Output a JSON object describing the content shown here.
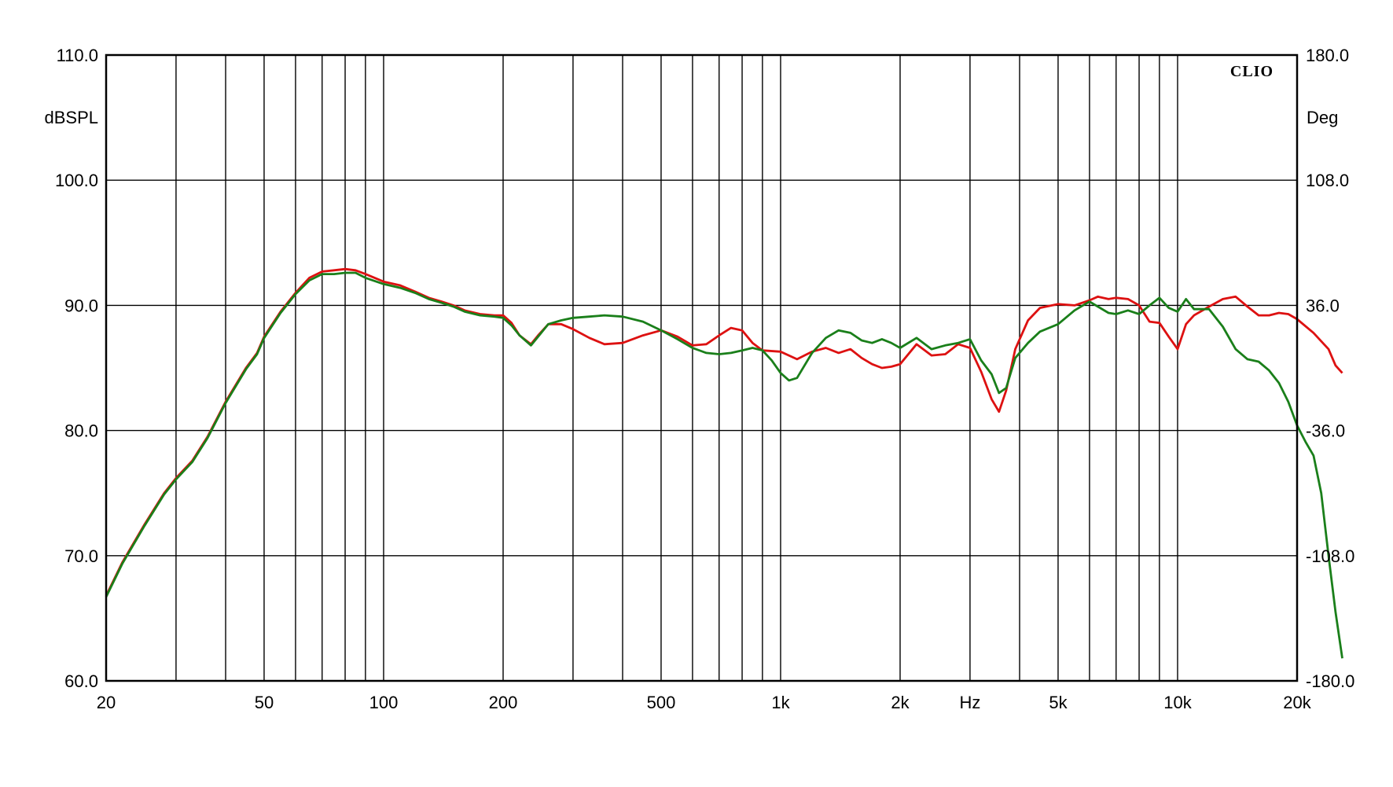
{
  "chart_data": {
    "type": "line",
    "brand": "CLIO",
    "xlabel": "Hz",
    "ylabel_left": "dBSPL",
    "ylabel_right": "Deg",
    "x_scale": "log",
    "xlim": [
      20,
      20000
    ],
    "ylim_left": [
      60,
      110
    ],
    "ylim_right": [
      -180,
      180
    ],
    "grid": true,
    "x_ticks": [
      {
        "value": 20,
        "label": "20"
      },
      {
        "value": 50,
        "label": "50"
      },
      {
        "value": 100,
        "label": "100"
      },
      {
        "value": 200,
        "label": "200"
      },
      {
        "value": 500,
        "label": "500"
      },
      {
        "value": 1000,
        "label": "1k"
      },
      {
        "value": 2000,
        "label": "2k"
      },
      {
        "value": 5000,
        "label": "5k"
      },
      {
        "value": 10000,
        "label": "10k"
      },
      {
        "value": 20000,
        "label": "20k"
      }
    ],
    "y_ticks_left": [
      {
        "value": 60,
        "label": "60.0"
      },
      {
        "value": 70,
        "label": "70.0"
      },
      {
        "value": 80,
        "label": "80.0"
      },
      {
        "value": 90,
        "label": "90.0"
      },
      {
        "value": 100,
        "label": "100.0"
      },
      {
        "value": 110,
        "label": "110.0"
      }
    ],
    "y_ticks_right": [
      {
        "value": -180,
        "label": "-180.0"
      },
      {
        "value": -108,
        "label": "-108.0"
      },
      {
        "value": -36,
        "label": "-36.0"
      },
      {
        "value": 36,
        "label": "36.0"
      },
      {
        "value": 108,
        "label": "108.0"
      },
      {
        "value": 180,
        "label": "180.0"
      }
    ],
    "series": [
      {
        "color": "#dd1111",
        "points": [
          [
            20,
            66.8
          ],
          [
            22,
            69.5
          ],
          [
            25,
            72.5
          ],
          [
            28,
            75.0
          ],
          [
            30,
            76.2
          ],
          [
            33,
            77.6
          ],
          [
            36,
            79.5
          ],
          [
            40,
            82.3
          ],
          [
            45,
            85.0
          ],
          [
            48,
            86.2
          ],
          [
            50,
            87.5
          ],
          [
            55,
            89.5
          ],
          [
            60,
            91.0
          ],
          [
            65,
            92.2
          ],
          [
            70,
            92.7
          ],
          [
            75,
            92.8
          ],
          [
            80,
            92.9
          ],
          [
            85,
            92.8
          ],
          [
            90,
            92.5
          ],
          [
            100,
            91.9
          ],
          [
            110,
            91.6
          ],
          [
            120,
            91.1
          ],
          [
            130,
            90.6
          ],
          [
            140,
            90.3
          ],
          [
            150,
            90.0
          ],
          [
            160,
            89.6
          ],
          [
            175,
            89.3
          ],
          [
            190,
            89.2
          ],
          [
            200,
            89.2
          ],
          [
            210,
            88.6
          ],
          [
            220,
            87.6
          ],
          [
            235,
            86.9
          ],
          [
            245,
            87.6
          ],
          [
            260,
            88.5
          ],
          [
            280,
            88.5
          ],
          [
            300,
            88.1
          ],
          [
            330,
            87.4
          ],
          [
            360,
            86.9
          ],
          [
            400,
            87.0
          ],
          [
            450,
            87.6
          ],
          [
            500,
            88.0
          ],
          [
            550,
            87.5
          ],
          [
            600,
            86.8
          ],
          [
            650,
            86.9
          ],
          [
            700,
            87.6
          ],
          [
            750,
            88.2
          ],
          [
            800,
            88.0
          ],
          [
            850,
            87.0
          ],
          [
            900,
            86.4
          ],
          [
            1000,
            86.3
          ],
          [
            1100,
            85.7
          ],
          [
            1200,
            86.3
          ],
          [
            1300,
            86.6
          ],
          [
            1400,
            86.2
          ],
          [
            1500,
            86.5
          ],
          [
            1600,
            85.8
          ],
          [
            1700,
            85.3
          ],
          [
            1800,
            85.0
          ],
          [
            1900,
            85.1
          ],
          [
            2000,
            85.3
          ],
          [
            2200,
            86.9
          ],
          [
            2400,
            86.0
          ],
          [
            2600,
            86.1
          ],
          [
            2800,
            86.9
          ],
          [
            3000,
            86.6
          ],
          [
            3200,
            84.7
          ],
          [
            3400,
            82.5
          ],
          [
            3550,
            81.5
          ],
          [
            3700,
            83.2
          ],
          [
            3900,
            86.5
          ],
          [
            4200,
            88.8
          ],
          [
            4500,
            89.8
          ],
          [
            5000,
            90.1
          ],
          [
            5500,
            90.0
          ],
          [
            6000,
            90.4
          ],
          [
            6300,
            90.7
          ],
          [
            6700,
            90.5
          ],
          [
            7000,
            90.6
          ],
          [
            7500,
            90.5
          ],
          [
            8000,
            90.0
          ],
          [
            8500,
            88.7
          ],
          [
            9000,
            88.6
          ],
          [
            9500,
            87.5
          ],
          [
            10000,
            86.5
          ],
          [
            10500,
            88.5
          ],
          [
            11000,
            89.2
          ],
          [
            12000,
            89.9
          ],
          [
            13000,
            90.5
          ],
          [
            14000,
            90.7
          ],
          [
            15000,
            89.9
          ],
          [
            16000,
            89.2
          ],
          [
            17000,
            89.2
          ],
          [
            18000,
            89.4
          ],
          [
            19000,
            89.3
          ],
          [
            20000,
            88.9
          ],
          [
            22000,
            87.8
          ],
          [
            24000,
            86.5
          ],
          [
            25000,
            85.2
          ],
          [
            26000,
            84.6
          ]
        ]
      },
      {
        "color": "#1a7f1a",
        "points": [
          [
            20,
            66.7
          ],
          [
            22,
            69.4
          ],
          [
            25,
            72.4
          ],
          [
            28,
            74.9
          ],
          [
            30,
            76.1
          ],
          [
            33,
            77.5
          ],
          [
            36,
            79.4
          ],
          [
            40,
            82.2
          ],
          [
            45,
            84.9
          ],
          [
            48,
            86.1
          ],
          [
            50,
            87.4
          ],
          [
            55,
            89.4
          ],
          [
            60,
            90.9
          ],
          [
            65,
            92.0
          ],
          [
            70,
            92.5
          ],
          [
            75,
            92.5
          ],
          [
            80,
            92.6
          ],
          [
            85,
            92.6
          ],
          [
            90,
            92.2
          ],
          [
            100,
            91.7
          ],
          [
            110,
            91.4
          ],
          [
            120,
            91.0
          ],
          [
            130,
            90.5
          ],
          [
            140,
            90.2
          ],
          [
            150,
            89.9
          ],
          [
            160,
            89.5
          ],
          [
            175,
            89.2
          ],
          [
            190,
            89.1
          ],
          [
            200,
            89.0
          ],
          [
            210,
            88.4
          ],
          [
            220,
            87.6
          ],
          [
            235,
            86.8
          ],
          [
            245,
            87.5
          ],
          [
            260,
            88.5
          ],
          [
            280,
            88.8
          ],
          [
            300,
            89.0
          ],
          [
            330,
            89.1
          ],
          [
            360,
            89.2
          ],
          [
            400,
            89.1
          ],
          [
            450,
            88.7
          ],
          [
            500,
            88.0
          ],
          [
            550,
            87.3
          ],
          [
            600,
            86.6
          ],
          [
            650,
            86.2
          ],
          [
            700,
            86.1
          ],
          [
            750,
            86.2
          ],
          [
            800,
            86.4
          ],
          [
            850,
            86.6
          ],
          [
            900,
            86.4
          ],
          [
            950,
            85.6
          ],
          [
            1000,
            84.6
          ],
          [
            1050,
            84.0
          ],
          [
            1100,
            84.2
          ],
          [
            1200,
            86.2
          ],
          [
            1300,
            87.4
          ],
          [
            1400,
            88.0
          ],
          [
            1500,
            87.8
          ],
          [
            1600,
            87.2
          ],
          [
            1700,
            87.0
          ],
          [
            1800,
            87.3
          ],
          [
            1900,
            87.0
          ],
          [
            2000,
            86.6
          ],
          [
            2200,
            87.4
          ],
          [
            2400,
            86.5
          ],
          [
            2600,
            86.8
          ],
          [
            2800,
            87.0
          ],
          [
            3000,
            87.3
          ],
          [
            3200,
            85.6
          ],
          [
            3400,
            84.5
          ],
          [
            3550,
            83.0
          ],
          [
            3700,
            83.4
          ],
          [
            3900,
            85.8
          ],
          [
            4200,
            87.0
          ],
          [
            4500,
            87.9
          ],
          [
            5000,
            88.5
          ],
          [
            5500,
            89.6
          ],
          [
            6000,
            90.3
          ],
          [
            6300,
            89.9
          ],
          [
            6700,
            89.4
          ],
          [
            7000,
            89.3
          ],
          [
            7500,
            89.6
          ],
          [
            8000,
            89.3
          ],
          [
            8500,
            90.0
          ],
          [
            9000,
            90.6
          ],
          [
            9500,
            89.8
          ],
          [
            10000,
            89.5
          ],
          [
            10500,
            90.5
          ],
          [
            11000,
            89.7
          ],
          [
            12000,
            89.7
          ],
          [
            13000,
            88.3
          ],
          [
            14000,
            86.5
          ],
          [
            15000,
            85.7
          ],
          [
            16000,
            85.5
          ],
          [
            17000,
            84.8
          ],
          [
            18000,
            83.8
          ],
          [
            19000,
            82.3
          ],
          [
            20000,
            80.4
          ],
          [
            21000,
            79.1
          ],
          [
            22000,
            78.0
          ],
          [
            23000,
            75.0
          ],
          [
            24000,
            70.0
          ],
          [
            25000,
            65.5
          ],
          [
            26000,
            61.8
          ]
        ]
      }
    ]
  }
}
